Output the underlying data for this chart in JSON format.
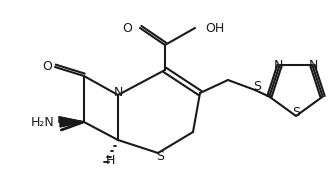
{
  "background_color": "#ffffff",
  "line_color": "#1a1a1a",
  "line_width": 1.5,
  "font_size": 8,
  "atoms": {
    "N": "N",
    "S1": "S",
    "S2": "S",
    "S3": "S",
    "O1": "O",
    "O2": "O",
    "OH": "OH",
    "H2N": "H₂N",
    "H": "H",
    "N_label": "N",
    "N2": "N",
    "N3": "N"
  },
  "figsize": [
    3.32,
    1.76
  ],
  "dpi": 100
}
